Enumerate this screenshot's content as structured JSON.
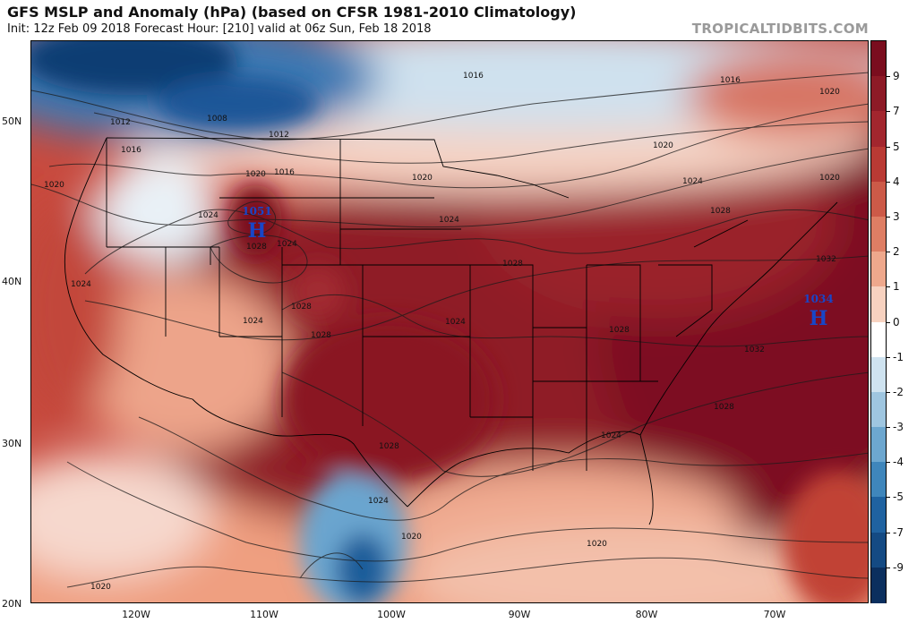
{
  "title": "GFS MSLP and Anomaly (hPa) (based on CFSR 1981-2010 Climatology)",
  "subtitle": "Init: 12z Feb 09 2018   Forecast Hour: [210]   valid at 06z Sun, Feb 18 2018",
  "source": "TROPICALTIDBITS.COM",
  "axes": {
    "latitude_labels": [
      "50N",
      "40N",
      "30N",
      "20N"
    ],
    "longitude_labels": [
      "120W",
      "110W",
      "100W",
      "90W",
      "80W",
      "70W"
    ]
  },
  "colorbar": {
    "ticks": [
      "9",
      "7",
      "5",
      "4",
      "3",
      "2",
      "1",
      "0",
      "-1",
      "-2",
      "-3",
      "-4",
      "-5",
      "-7",
      "-9"
    ],
    "colors": [
      "#7a0d1e",
      "#8d1a26",
      "#a2262e",
      "#b93a34",
      "#cc5a48",
      "#de7e64",
      "#eea88c",
      "#f7d2c0",
      "#ffffff",
      "#cfe3f0",
      "#9fc6e0",
      "#6da7cf",
      "#3f86bb",
      "#1f62a0",
      "#144a83",
      "#0b2f5e"
    ]
  },
  "pressure_centers": [
    {
      "type": "H",
      "value": "1051"
    },
    {
      "type": "H",
      "value": "1034"
    }
  ],
  "isobar_labels": [
    "1016",
    "1012",
    "1008",
    "1012",
    "1016",
    "1016",
    "1020",
    "1020",
    "1016",
    "1020",
    "1024",
    "1028",
    "1024",
    "1020",
    "1024",
    "1024",
    "1028",
    "1024",
    "1028",
    "1028",
    "1028",
    "1028",
    "1032",
    "1032",
    "1028",
    "1024",
    "1024",
    "1020",
    "1020",
    "1020",
    "1020",
    "1024",
    "1024",
    "1020",
    "1028"
  ]
}
